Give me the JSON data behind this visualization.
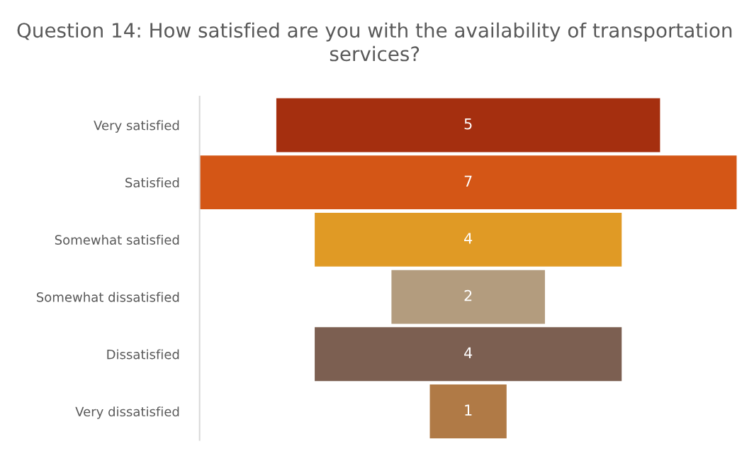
{
  "chart_data": {
    "type": "other",
    "title": "Question 14: How satisfied are you with the availability of transportation services?",
    "categories": [
      "Very satisfied",
      "Satisfied",
      "Somewhat satisfied",
      "Somewhat dissatisfied",
      "Dissatisfied",
      "Very dissatisfied"
    ],
    "values": [
      5,
      7,
      4,
      2,
      4,
      1
    ],
    "colors": [
      "#a52f0f",
      "#d45616",
      "#e09a25",
      "#b39c7e",
      "#7c5f51",
      "#b07a46"
    ],
    "data_labels": true
  }
}
